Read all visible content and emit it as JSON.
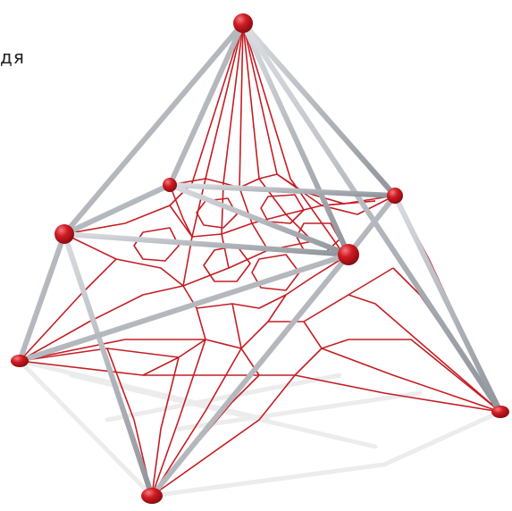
{
  "image": {
    "caption_fragment": "дя",
    "colors": {
      "background": "#ffffff",
      "pole": "#a9adb3",
      "pole_highlight": "#dadde1",
      "net": "#c41e24",
      "ball": "#d11a22",
      "ball_highlight": "#f27b80",
      "shadow": "#eaeaea"
    }
  }
}
